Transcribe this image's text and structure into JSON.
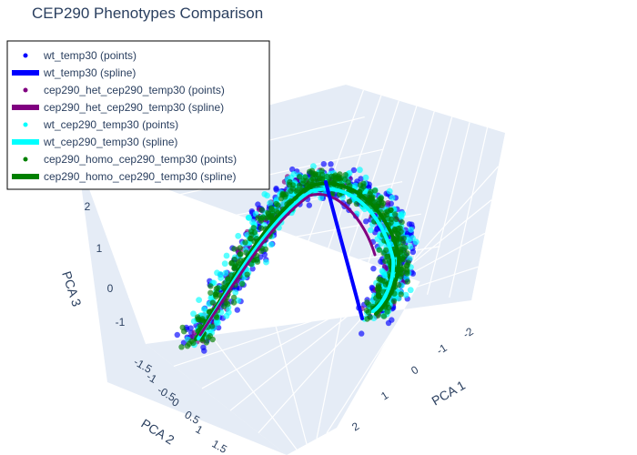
{
  "chart_data": {
    "type": "scatter",
    "projection": "3d",
    "title": "CEP290 Phenotypes Comparison",
    "axes": {
      "x": {
        "label": "PCA 1",
        "range": [
          -2.5,
          2.5
        ],
        "ticks": [
          "-2",
          "-1",
          "0",
          "1",
          "2"
        ]
      },
      "y": {
        "label": "PCA 2",
        "range": [
          -1.6,
          1.6
        ],
        "ticks": [
          "-1.5",
          "-1",
          "-0.5",
          "0",
          "0.5",
          "1",
          "1.5"
        ]
      },
      "z": {
        "label": "PCA 3",
        "range": [
          -1.5,
          2.5
        ],
        "ticks": [
          "-1",
          "0",
          "1",
          "2"
        ]
      }
    },
    "grid": true,
    "legend_position": "top-left",
    "series": [
      {
        "name": "wt_temp30 (points)",
        "mode": "markers",
        "color": "#0000ff"
      },
      {
        "name": "wt_temp30 (spline)",
        "mode": "lines",
        "color": "#0000ff"
      },
      {
        "name": "cep290_het_cep290_temp30 (points)",
        "mode": "markers",
        "color": "#800080"
      },
      {
        "name": "cep290_het_cep290_temp30 (spline)",
        "mode": "lines",
        "color": "#800080"
      },
      {
        "name": "wt_cep290_temp30 (points)",
        "mode": "markers",
        "color": "#00ffff"
      },
      {
        "name": "wt_cep290_temp30 (spline)",
        "mode": "lines",
        "color": "#00ffff"
      },
      {
        "name": "cep290_homo_cep290_temp30 (points)",
        "mode": "markers",
        "color": "#008000"
      },
      {
        "name": "cep290_homo_cep290_temp30 (spline)",
        "mode": "lines",
        "color": "#008000"
      }
    ]
  }
}
